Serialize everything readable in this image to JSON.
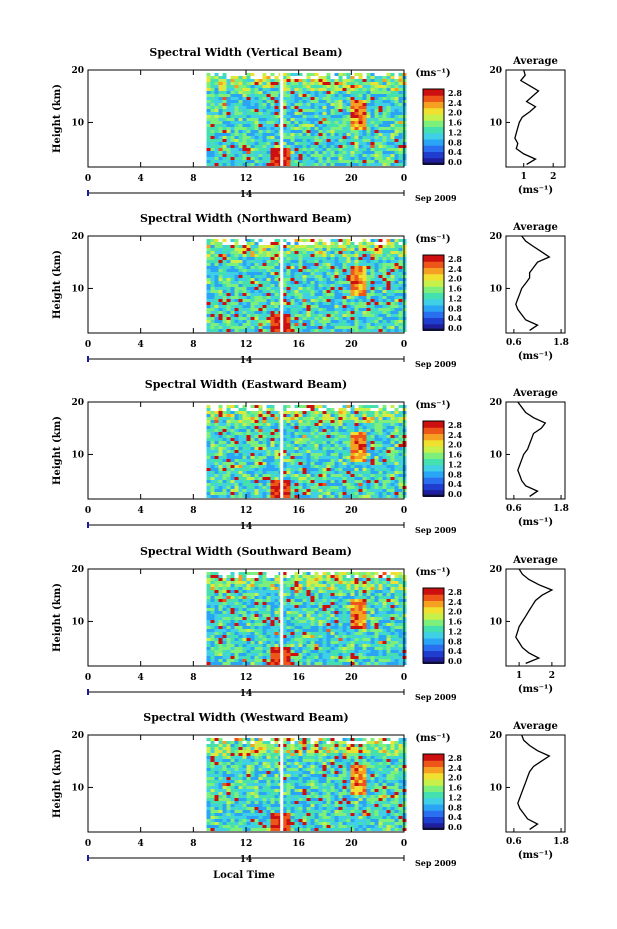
{
  "figure": {
    "x_axis_label": "Local Time",
    "date_label": "Sep 2009",
    "colorbar_unit": "(ms⁻¹)",
    "average_unit": "(ms⁻¹)",
    "average_title": "Average",
    "colorbar_ticks": [
      "2.8",
      "2.4",
      "2.0",
      "1.6",
      "1.2",
      "0.8",
      "0.4",
      "0.0"
    ],
    "colormap": [
      "#1e1e9e",
      "#1f3ecf",
      "#2a6ff0",
      "#2aa4f5",
      "#3fd0e6",
      "#45e0b0",
      "#7cf07a",
      "#c8f04a",
      "#f0e030",
      "#f5a020",
      "#ee5518",
      "#cc1010"
    ]
  },
  "chart_data": [
    {
      "type": "heatmap",
      "title": "Spectral Width (Vertical Beam)",
      "ylabel": "Height (km)",
      "xlabel": "Local Time",
      "x_ticks": [
        "0",
        "4",
        "8",
        "12",
        "16",
        "20",
        "0"
      ],
      "y_ticks": [
        "20",
        "10"
      ],
      "day_label": "14",
      "xlim_hours": [
        0,
        24
      ],
      "ylim_km": [
        1.5,
        20
      ],
      "data_start_hour": 9,
      "color_range": [
        0.0,
        3.0
      ],
      "average": {
        "x_ticks": [
          "1",
          "2"
        ],
        "xlim": [
          0.4,
          2.4
        ],
        "profile_km": [
          20,
          19,
          18,
          17,
          16,
          15,
          14,
          13,
          12,
          11,
          10,
          9,
          8,
          7,
          6,
          5,
          4,
          3,
          2
        ],
        "profile_ms": [
          1.0,
          1.05,
          0.9,
          1.2,
          1.5,
          1.3,
          1.1,
          1.4,
          1.2,
          0.95,
          0.85,
          0.8,
          0.75,
          0.7,
          0.8,
          0.75,
          1.0,
          1.4,
          1.1
        ]
      }
    },
    {
      "type": "heatmap",
      "title": "Spectral Width (Northward Beam)",
      "ylabel": "Height (km)",
      "xlabel": "Local Time",
      "x_ticks": [
        "0",
        "4",
        "8",
        "12",
        "16",
        "20",
        "0"
      ],
      "y_ticks": [
        "20",
        "10"
      ],
      "day_label": "14",
      "xlim_hours": [
        0,
        24
      ],
      "ylim_km": [
        1.5,
        20
      ],
      "data_start_hour": 9,
      "color_range": [
        0.0,
        3.0
      ],
      "average": {
        "x_ticks": [
          "0.6",
          "1.8"
        ],
        "xlim": [
          0.4,
          1.9
        ],
        "profile_km": [
          20,
          19,
          18,
          17,
          16,
          15,
          14,
          13,
          12,
          11,
          10,
          9,
          8,
          7,
          6,
          5,
          4,
          3,
          2
        ],
        "profile_ms": [
          0.8,
          0.9,
          1.1,
          1.3,
          1.5,
          1.2,
          1.1,
          1.0,
          1.0,
          0.9,
          0.8,
          0.75,
          0.7,
          0.65,
          0.7,
          0.8,
          0.9,
          1.2,
          1.0
        ]
      }
    },
    {
      "type": "heatmap",
      "title": "Spectral Width (Eastward Beam)",
      "ylabel": "Height (km)",
      "xlabel": "Local Time",
      "x_ticks": [
        "0",
        "4",
        "8",
        "12",
        "16",
        "20",
        "0"
      ],
      "y_ticks": [
        "20",
        "10"
      ],
      "day_label": "14",
      "xlim_hours": [
        0,
        24
      ],
      "ylim_km": [
        1.5,
        20
      ],
      "data_start_hour": 9,
      "color_range": [
        0.0,
        3.0
      ],
      "average": {
        "x_ticks": [
          "0.6",
          "1.8"
        ],
        "xlim": [
          0.4,
          1.9
        ],
        "profile_km": [
          20,
          19,
          18,
          17,
          16,
          15,
          14,
          13,
          12,
          11,
          10,
          9,
          8,
          7,
          6,
          5,
          4,
          3,
          2
        ],
        "profile_ms": [
          0.7,
          0.8,
          0.9,
          1.1,
          1.4,
          1.3,
          1.1,
          1.05,
          1.0,
          0.95,
          0.85,
          0.8,
          0.75,
          0.7,
          0.75,
          0.8,
          0.9,
          1.2,
          1.0
        ]
      }
    },
    {
      "type": "heatmap",
      "title": "Spectral Width (Southward Beam)",
      "ylabel": "Height (km)",
      "xlabel": "Local Time",
      "x_ticks": [
        "0",
        "4",
        "8",
        "12",
        "16",
        "20",
        "0"
      ],
      "y_ticks": [
        "20",
        "10"
      ],
      "day_label": "14",
      "xlim_hours": [
        0,
        24
      ],
      "ylim_km": [
        1.5,
        20
      ],
      "data_start_hour": 9,
      "color_range": [
        0.0,
        3.0
      ],
      "average": {
        "x_ticks": [
          "1",
          "2"
        ],
        "xlim": [
          0.6,
          2.4
        ],
        "profile_km": [
          20,
          19,
          18,
          17,
          16,
          15,
          14,
          13,
          12,
          11,
          10,
          9,
          8,
          7,
          6,
          5,
          4,
          3,
          2
        ],
        "profile_ms": [
          1.0,
          1.1,
          1.3,
          1.6,
          2.0,
          1.7,
          1.5,
          1.4,
          1.3,
          1.2,
          1.1,
          1.0,
          0.95,
          0.9,
          1.0,
          1.1,
          1.3,
          1.6,
          1.2
        ]
      }
    },
    {
      "type": "heatmap",
      "title": "Spectral Width (Westward Beam)",
      "ylabel": "Height (km)",
      "xlabel": "Local Time",
      "x_ticks": [
        "0",
        "4",
        "8",
        "12",
        "16",
        "20",
        "0"
      ],
      "y_ticks": [
        "20",
        "10"
      ],
      "day_label": "14",
      "xlim_hours": [
        0,
        24
      ],
      "ylim_km": [
        1.5,
        20
      ],
      "data_start_hour": 9,
      "color_range": [
        0.0,
        3.0
      ],
      "average": {
        "x_ticks": [
          "0.6",
          "1.8"
        ],
        "xlim": [
          0.4,
          1.9
        ],
        "profile_km": [
          20,
          19,
          18,
          17,
          16,
          15,
          14,
          13,
          12,
          11,
          10,
          9,
          8,
          7,
          6,
          5,
          4,
          3,
          2
        ],
        "profile_ms": [
          0.8,
          0.85,
          1.0,
          1.2,
          1.5,
          1.3,
          1.1,
          1.0,
          0.95,
          0.9,
          0.85,
          0.8,
          0.75,
          0.7,
          0.75,
          0.85,
          0.95,
          1.2,
          1.0
        ]
      }
    }
  ]
}
